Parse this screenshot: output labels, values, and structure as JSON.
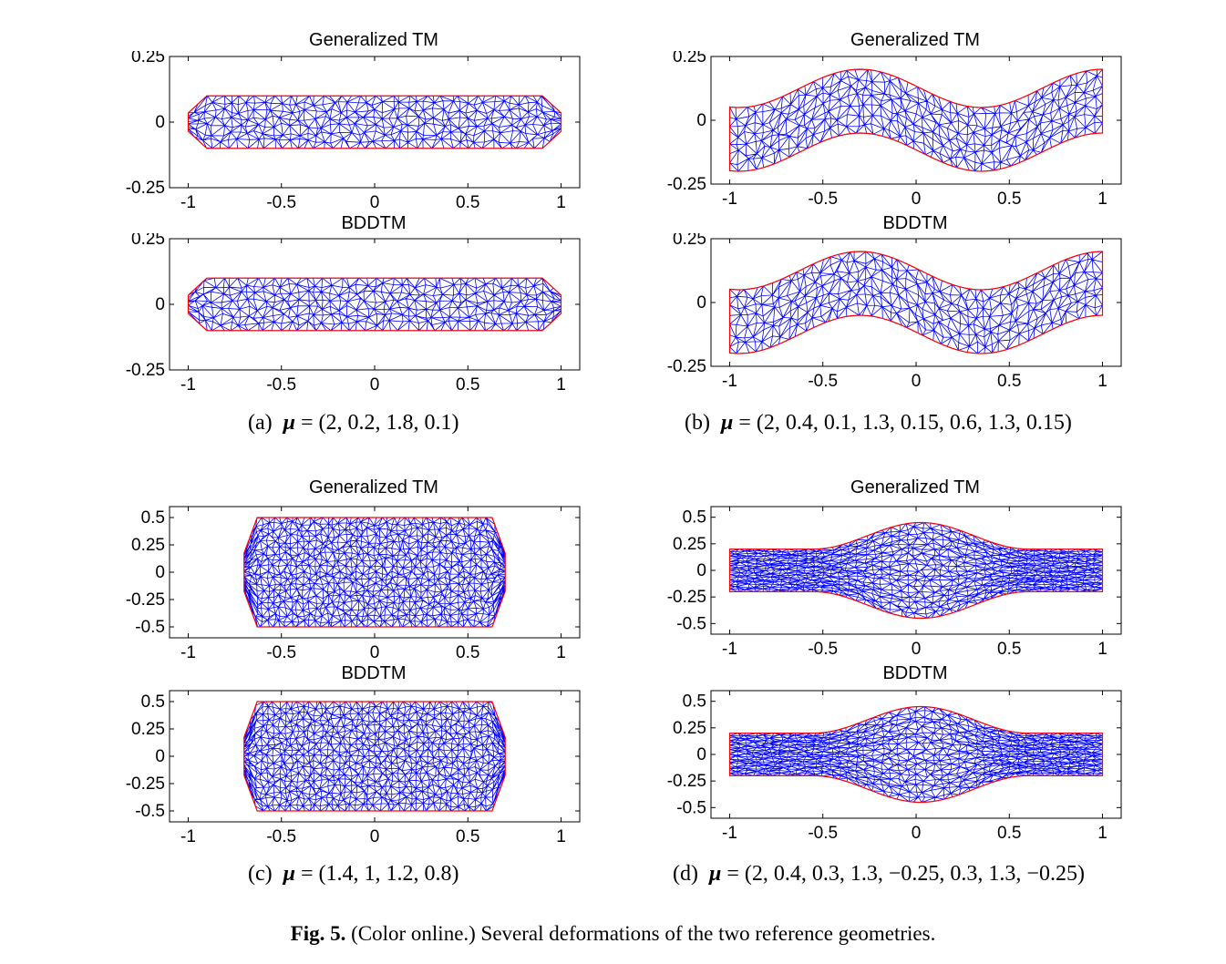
{
  "figure": {
    "label": "Fig. 5.",
    "text": "(Color online.) Several deformations of the two reference geometries."
  },
  "subfigures": [
    {
      "tag": "(a)",
      "params": "= (2, 0.2, 1.8, 0.1)"
    },
    {
      "tag": "(b)",
      "params": "= (2, 0.4, 0.1, 1.3, 0.15, 0.6, 1.3, 0.15)"
    },
    {
      "tag": "(c)",
      "params": "= (1.4, 1, 1.2, 0.8)"
    },
    {
      "tag": "(d)",
      "params": "= (2, 0.4, 0.3, 1.3, −0.25, 0.3, 1.3, −0.25)"
    }
  ],
  "mu_symbol": "μ",
  "colors": {
    "mesh": "#0000ff",
    "boundary": "#ff0000",
    "axes": "#000000"
  },
  "chart_data": [
    {
      "type": "mesh",
      "title": "Generalized TM",
      "xlim": [
        -1.1,
        1.1
      ],
      "ylim": [
        -0.25,
        0.25
      ],
      "xticks": [
        "-1",
        "-0.5",
        "0",
        "0.5",
        "1"
      ],
      "yticks": [
        "0.25",
        "0",
        "-0.25"
      ],
      "shape": "capsule",
      "params": {
        "halfw": 1.0,
        "halfh": 0.1,
        "chamfer": 0.1
      }
    },
    {
      "type": "mesh",
      "title": "Generalized TM",
      "xlim": [
        -1.1,
        1.1
      ],
      "ylim": [
        -0.25,
        0.25
      ],
      "xticks": [
        "-1",
        "-0.5",
        "0",
        "0.5",
        "1"
      ],
      "yticks": [
        "0.25",
        "0",
        "-0.25"
      ],
      "shape": "wavy",
      "params": {
        "amp": 0.075,
        "mid": 0.125,
        "hw": 0.2
      }
    },
    {
      "type": "mesh",
      "title": "BDDTM",
      "xlim": [
        -1.1,
        1.1
      ],
      "ylim": [
        -0.25,
        0.25
      ],
      "xticks": [
        "-1",
        "-0.5",
        "0",
        "0.5",
        "1"
      ],
      "yticks": [
        "0.25",
        "0",
        "-0.25"
      ],
      "shape": "capsule",
      "params": {
        "halfw": 1.0,
        "halfh": 0.1,
        "chamfer": 0.1
      }
    },
    {
      "type": "mesh",
      "title": "BDDTM",
      "xlim": [
        -1.1,
        1.1
      ],
      "ylim": [
        -0.25,
        0.25
      ],
      "xticks": [
        "-1",
        "-0.5",
        "0",
        "0.5",
        "1"
      ],
      "yticks": [
        "0.25",
        "0",
        "-0.25"
      ],
      "shape": "wavy",
      "params": {
        "amp": 0.075,
        "mid": 0.125,
        "hw": 0.2
      }
    },
    {
      "type": "mesh",
      "title": "Generalized TM",
      "xlim": [
        -1.1,
        1.1
      ],
      "ylim": [
        -0.6,
        0.6
      ],
      "xticks": [
        "-1",
        "-0.5",
        "0",
        "0.5",
        "1"
      ],
      "yticks": [
        "0.5",
        "0.25",
        "0",
        "-0.25",
        "-0.5"
      ],
      "shape": "capsule",
      "params": {
        "halfw": 0.7,
        "halfh": 0.5,
        "chamfer": 0.07
      }
    },
    {
      "type": "mesh",
      "title": "Generalized TM",
      "xlim": [
        -1.1,
        1.1
      ],
      "ylim": [
        -0.6,
        0.6
      ],
      "xticks": [
        "-1",
        "-0.5",
        "0",
        "0.5",
        "1"
      ],
      "yticks": [
        "0.5",
        "0.25",
        "0",
        "-0.25",
        "-0.5"
      ],
      "shape": "bulge",
      "params": {
        "hw": 0.2,
        "peak": 0.45
      }
    },
    {
      "type": "mesh",
      "title": "BDDTM",
      "xlim": [
        -1.1,
        1.1
      ],
      "ylim": [
        -0.6,
        0.6
      ],
      "xticks": [
        "-1",
        "-0.5",
        "0",
        "0.5",
        "1"
      ],
      "yticks": [
        "0.5",
        "0.25",
        "0",
        "-0.25",
        "-0.5"
      ],
      "shape": "capsule",
      "params": {
        "halfw": 0.7,
        "halfh": 0.5,
        "chamfer": 0.07
      }
    },
    {
      "type": "mesh",
      "title": "BDDTM",
      "xlim": [
        -1.1,
        1.1
      ],
      "ylim": [
        -0.6,
        0.6
      ],
      "xticks": [
        "-1",
        "-0.5",
        "0",
        "0.5",
        "1"
      ],
      "yticks": [
        "0.5",
        "0.25",
        "0",
        "-0.25",
        "-0.5"
      ],
      "shape": "bulge",
      "params": {
        "hw": 0.2,
        "peak": 0.45
      }
    }
  ]
}
